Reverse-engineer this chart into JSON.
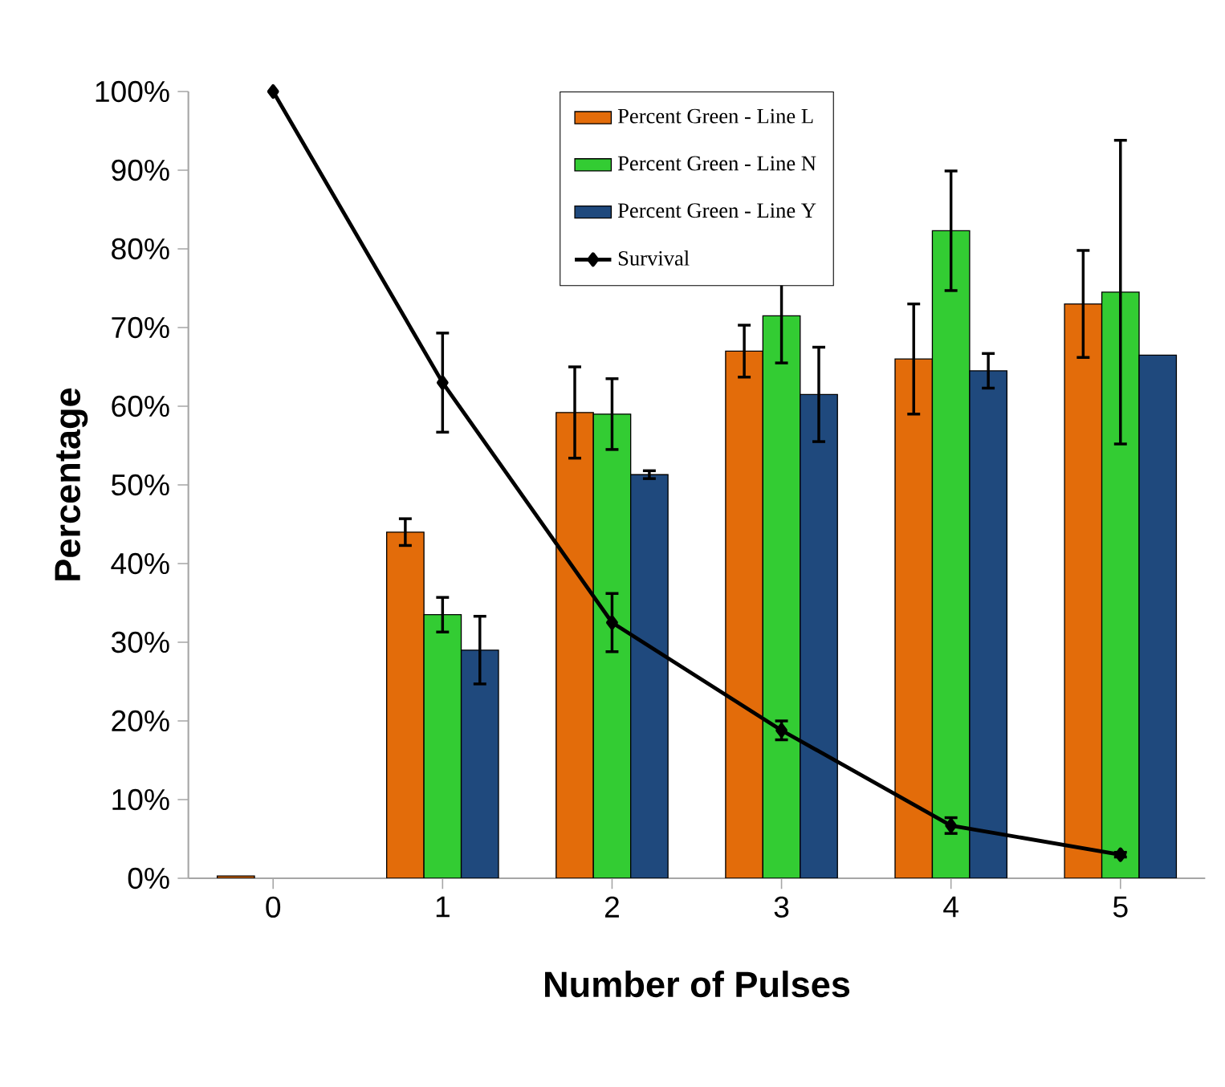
{
  "chart_data": {
    "type": "bar",
    "xlabel": "Number of Pulses",
    "ylabel": "Percentage",
    "categories": [
      "0",
      "1",
      "2",
      "3",
      "4",
      "5"
    ],
    "series": [
      {
        "name": "Percent Green - Line L",
        "color": "#e36c0a",
        "values": [
          0.3,
          44,
          59.2,
          67,
          66,
          73
        ],
        "errors": [
          null,
          1.7,
          5.8,
          3.3,
          7,
          6.8
        ]
      },
      {
        "name": "Percent Green - Line N",
        "color": "#33cc33",
        "values": [
          null,
          33.5,
          59,
          71.5,
          82.3,
          74.5
        ],
        "errors": [
          null,
          2.2,
          4.5,
          6,
          7.6,
          19.3
        ]
      },
      {
        "name": "Percent Green - Line Y",
        "color": "#1f497d",
        "values": [
          null,
          29,
          51.3,
          61.5,
          64.5,
          66.5
        ],
        "errors": [
          null,
          4.3,
          0.5,
          6,
          2.2,
          null
        ]
      },
      {
        "name": "Survival",
        "type": "line",
        "color": "#000000",
        "marker": "diamond",
        "values": [
          100,
          63,
          32.5,
          18.8,
          6.7,
          3
        ],
        "errors": [
          null,
          6.3,
          3.7,
          1.2,
          1,
          0.3
        ]
      }
    ],
    "ylim": [
      0,
      100
    ],
    "yticks": [
      {
        "value": 0,
        "label": "0%"
      },
      {
        "value": 10,
        "label": "10%"
      },
      {
        "value": 20,
        "label": "20%"
      },
      {
        "value": 30,
        "label": "30%"
      },
      {
        "value": 40,
        "label": "40%"
      },
      {
        "value": 50,
        "label": "50%"
      },
      {
        "value": 60,
        "label": "60%"
      },
      {
        "value": 70,
        "label": "70%"
      },
      {
        "value": 80,
        "label": "80%"
      },
      {
        "value": 90,
        "label": "90%"
      },
      {
        "value": 100,
        "label": "100%"
      }
    ],
    "legend": "top",
    "grid": false
  }
}
